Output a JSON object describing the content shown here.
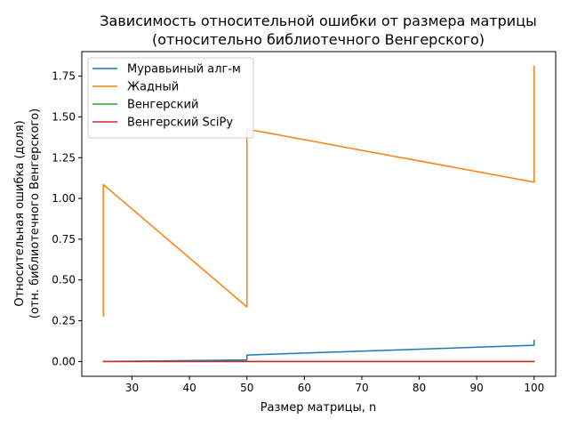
{
  "chart_data": {
    "type": "line",
    "title_line1": "Зависимость относительной ошибки от размера матрицы",
    "title_line2": "(относительно библиотечного Венгерского)",
    "xlabel": "Размер матрицы, n",
    "ylabel_line1": "Относительная ошибка (доля)",
    "ylabel_line2": "(отн. библиотечного Венгерского)",
    "xlim": [
      21.25,
      103.75
    ],
    "ylim": [
      -0.0905,
      1.9005
    ],
    "x_ticks": [
      30,
      40,
      50,
      60,
      70,
      80,
      90,
      100
    ],
    "y_ticks": [
      0.0,
      0.25,
      0.5,
      0.75,
      1.0,
      1.25,
      1.5,
      1.75
    ],
    "y_tick_labels": [
      "0.00",
      "0.25",
      "0.50",
      "0.75",
      "1.00",
      "1.25",
      "1.50",
      "1.75"
    ],
    "grid": false,
    "legend_position": "top-left",
    "series": [
      {
        "name": "Муравьиный алг-м",
        "color": "#1f77b4",
        "points": [
          [
            25,
            0.0
          ],
          [
            25,
            0.0
          ],
          [
            50,
            0.01
          ],
          [
            50,
            0.04
          ],
          [
            100,
            0.1
          ],
          [
            100,
            0.13
          ]
        ]
      },
      {
        "name": "Жадный",
        "color": "#ff7f0e",
        "points": [
          [
            25,
            0.28
          ],
          [
            25,
            1.085
          ],
          [
            50,
            0.335
          ],
          [
            50,
            1.425
          ],
          [
            100,
            1.1
          ],
          [
            100,
            1.81
          ]
        ]
      },
      {
        "name": "Венгерский",
        "color": "#2ca02c",
        "points": [
          [
            25,
            0.0
          ],
          [
            25,
            0.0
          ],
          [
            50,
            0.0
          ],
          [
            50,
            0.0
          ],
          [
            100,
            0.0
          ],
          [
            100,
            0.0
          ]
        ]
      },
      {
        "name": "Венгерский SciPy",
        "color": "#d62728",
        "points": [
          [
            25,
            0.0
          ],
          [
            25,
            0.0
          ],
          [
            50,
            0.0
          ],
          [
            50,
            0.0
          ],
          [
            100,
            0.0
          ],
          [
            100,
            0.0
          ]
        ]
      }
    ]
  }
}
